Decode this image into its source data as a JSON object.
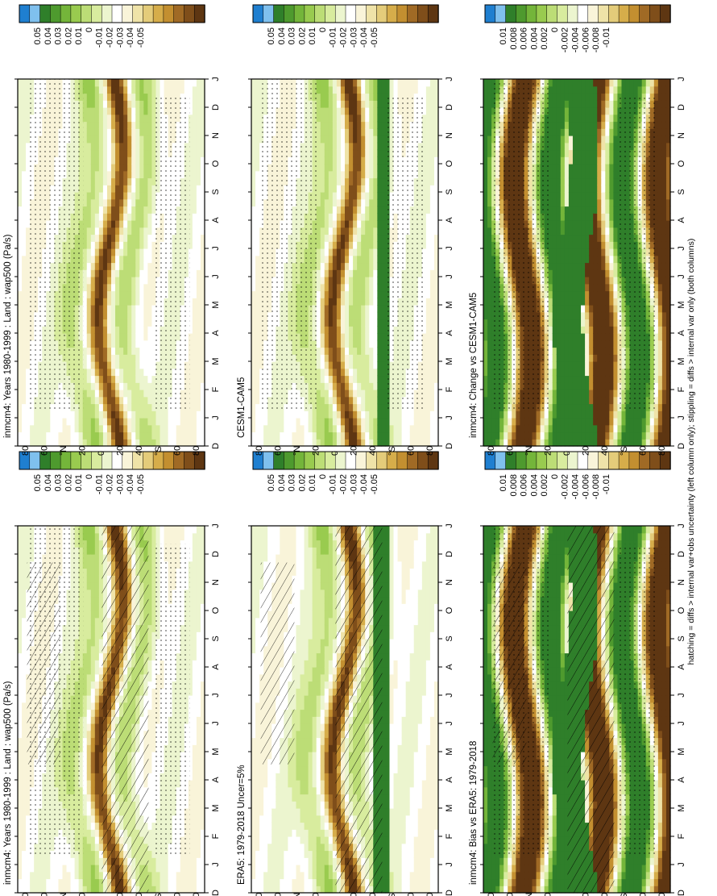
{
  "footer_note": "hatching = diffs > internal var+obs uncertainty (left column only); stippling = diffs > internal var only (both columns)",
  "chart_data": [
    {
      "type": "heatmap",
      "title": "inmcm4: Years 1980-1999 : Land : wap500 (Pa/s)",
      "months": [
        "D",
        "J",
        "F",
        "M",
        "A",
        "M",
        "J",
        "J",
        "A",
        "S",
        "O",
        "N",
        "D",
        "J"
      ],
      "lat_ticks": [
        "80",
        "60",
        "°N",
        "20",
        "0",
        "20",
        "40",
        "°S",
        "60",
        "80"
      ],
      "colorbar_ticks": [
        "0.05",
        "0.04",
        "0.03",
        "0.02",
        "0.01",
        "0",
        "-0.01",
        "-0.02",
        "-0.03",
        "-0.04",
        "-0.05"
      ],
      "overlay": "hatch+stipple",
      "band_amplitude": 0.05
    },
    {
      "type": "heatmap",
      "title": "inmcm4: Years 1980-1999 : Land : wap500 (Pa/s)",
      "months": [
        "D",
        "J",
        "F",
        "M",
        "A",
        "M",
        "J",
        "J",
        "A",
        "S",
        "O",
        "N",
        "D",
        "J"
      ],
      "lat_ticks": [
        "80",
        "60",
        "°N",
        "20",
        "0",
        "20",
        "40",
        "°S",
        "60",
        "80"
      ],
      "colorbar_ticks": [
        "0.05",
        "0.04",
        "0.03",
        "0.02",
        "0.01",
        "0",
        "-0.01",
        "-0.02",
        "-0.03",
        "-0.04",
        "-0.05"
      ],
      "overlay": "stipple",
      "band_amplitude": 0.04
    },
    {
      "type": "heatmap",
      "title": "ERA5: 1979-2018 Uncer=5%",
      "months": [
        "D",
        "J",
        "F",
        "M",
        "A",
        "M",
        "J",
        "J",
        "A",
        "S",
        "O",
        "N",
        "D",
        "J"
      ],
      "lat_ticks": [
        "80",
        "60",
        "°N",
        "20",
        "0",
        "20",
        "40",
        "°S",
        "60",
        "80"
      ],
      "colorbar_ticks": [
        "0.05",
        "0.04",
        "0.03",
        "0.02",
        "0.01",
        "0",
        "-0.01",
        "-0.02",
        "-0.03",
        "-0.04",
        "-0.05"
      ],
      "overlay": "hatch",
      "band_amplitude": 0.05
    },
    {
      "type": "heatmap",
      "title": "CESM1-CAM5",
      "months": [
        "D",
        "J",
        "F",
        "M",
        "A",
        "M",
        "J",
        "J",
        "A",
        "S",
        "O",
        "N",
        "D",
        "J"
      ],
      "lat_ticks": [
        "80",
        "60",
        "°N",
        "20",
        "0",
        "20",
        "40",
        "°S",
        "60",
        "80"
      ],
      "colorbar_ticks": [
        "0.05",
        "0.04",
        "0.03",
        "0.02",
        "0.01",
        "0",
        "-0.01",
        "-0.02",
        "-0.03",
        "-0.04",
        "-0.05"
      ],
      "overlay": "stipple",
      "band_amplitude": 0.04
    },
    {
      "type": "heatmap",
      "title": "inmcm4: Bias vs ERA5: 1979-2018",
      "months": [
        "D",
        "J",
        "F",
        "M",
        "A",
        "M",
        "J",
        "J",
        "A",
        "S",
        "O",
        "N",
        "D",
        "J"
      ],
      "lat_ticks": [
        "80",
        "60",
        "°N",
        "20",
        "0",
        "20",
        "40",
        "°S",
        "60",
        "80"
      ],
      "colorbar_ticks": [
        "0.01",
        "0.008",
        "0.006",
        "0.004",
        "0.002",
        "0",
        "-0.002",
        "-0.004",
        "-0.006",
        "-0.008",
        "-0.01"
      ],
      "overlay": "hatch+stipple",
      "band_amplitude": 0.01
    },
    {
      "type": "heatmap",
      "title": "inmcm4: Change vs CESM1-CAM5",
      "months": [
        "D",
        "J",
        "F",
        "M",
        "A",
        "M",
        "J",
        "J",
        "A",
        "S",
        "O",
        "N",
        "D",
        "J"
      ],
      "lat_ticks": [
        "80",
        "60",
        "°N",
        "20",
        "0",
        "20",
        "40",
        "°S",
        "60",
        "80"
      ],
      "colorbar_ticks": [
        "0.01",
        "0.008",
        "0.006",
        "0.004",
        "0.002",
        "0",
        "-0.002",
        "-0.004",
        "-0.006",
        "-0.008",
        "-0.01"
      ],
      "overlay": "stipple",
      "band_amplitude": 0.01
    }
  ],
  "colors": {
    "scale": [
      "#1f7fd0",
      "#7fc0ee",
      "#2f7f2a",
      "#4e9a2e",
      "#74b53a",
      "#99cb4f",
      "#bcdd76",
      "#d8ec9e",
      "#ecf5cf",
      "#ffffff",
      "#f9f4d9",
      "#efe3a8",
      "#e4cc7a",
      "#d6ad4a",
      "#c38f30",
      "#a06a25",
      "#7f4e1a",
      "#5e3612"
    ]
  }
}
